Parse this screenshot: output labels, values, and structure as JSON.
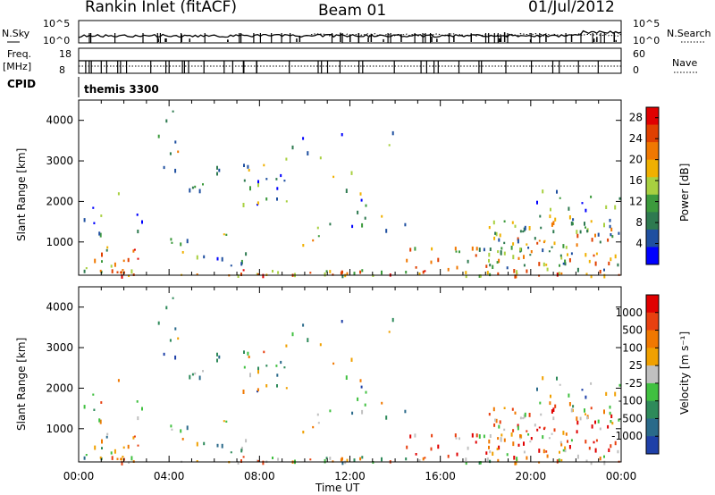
{
  "header": {
    "title": "Rankin Inlet (fitACF)",
    "beam": "Beam 01",
    "date": "01/Jul/2012"
  },
  "panels": {
    "nsky_label": "N.Sky",
    "nsearch_label": "N.Search",
    "freq_label": "Freq.",
    "freq_unit": "[MHz]",
    "nave_label": "Nave",
    "cpid_label": "CPID",
    "cpid_value": "themis 3300",
    "noise_ticks_left": [
      "10^5",
      "10^0"
    ],
    "noise_ticks_right": [
      "10^5",
      "10^0"
    ],
    "freq_ticks": [
      "18",
      "8"
    ],
    "nave_ticks": [
      "60",
      "0"
    ]
  },
  "colors": {
    "power_scale": [
      "#0000ff",
      "#1f4fa0",
      "#2e7a50",
      "#3c9a3c",
      "#a8d040",
      "#f0b000",
      "#f07800",
      "#e04000",
      "#e00000"
    ],
    "velocity_scale": [
      "#1e40a8",
      "#2a6a8a",
      "#2e8a5a",
      "#40c040",
      "#c0c0c0",
      "#f0a000",
      "#f07800",
      "#e84010",
      "#e00000"
    ]
  },
  "chart_data": [
    {
      "type": "heatmap",
      "name": "power",
      "xlabel": "Time UT",
      "ylabel": "Slant Range [km]",
      "xlim": [
        "00:00",
        "24:00"
      ],
      "ylim": [
        180,
        4500
      ],
      "x_ticks": [
        "00:00",
        "04:00",
        "08:00",
        "12:00",
        "16:00",
        "20:00",
        "00:00"
      ],
      "y_ticks": [
        1000,
        2000,
        3000,
        4000
      ],
      "colorbar": {
        "label": "Power [dB]",
        "ticks": [
          4,
          8,
          12,
          16,
          20,
          24,
          28
        ],
        "range": [
          0,
          30
        ]
      }
    },
    {
      "type": "heatmap",
      "name": "velocity",
      "xlabel": "Time UT",
      "ylabel": "Slant Range [km]",
      "xlim": [
        "00:00",
        "24:00"
      ],
      "ylim": [
        180,
        4500
      ],
      "x_ticks": [
        "00:00",
        "04:00",
        "08:00",
        "12:00",
        "16:00",
        "20:00",
        "00:00"
      ],
      "y_ticks": [
        1000,
        2000,
        3000,
        4000
      ],
      "colorbar": {
        "label": "Velocity [m s⁻¹]",
        "ticks": [
          1000,
          500,
          100,
          25,
          -25,
          -100,
          -500,
          -1000
        ]
      }
    }
  ]
}
